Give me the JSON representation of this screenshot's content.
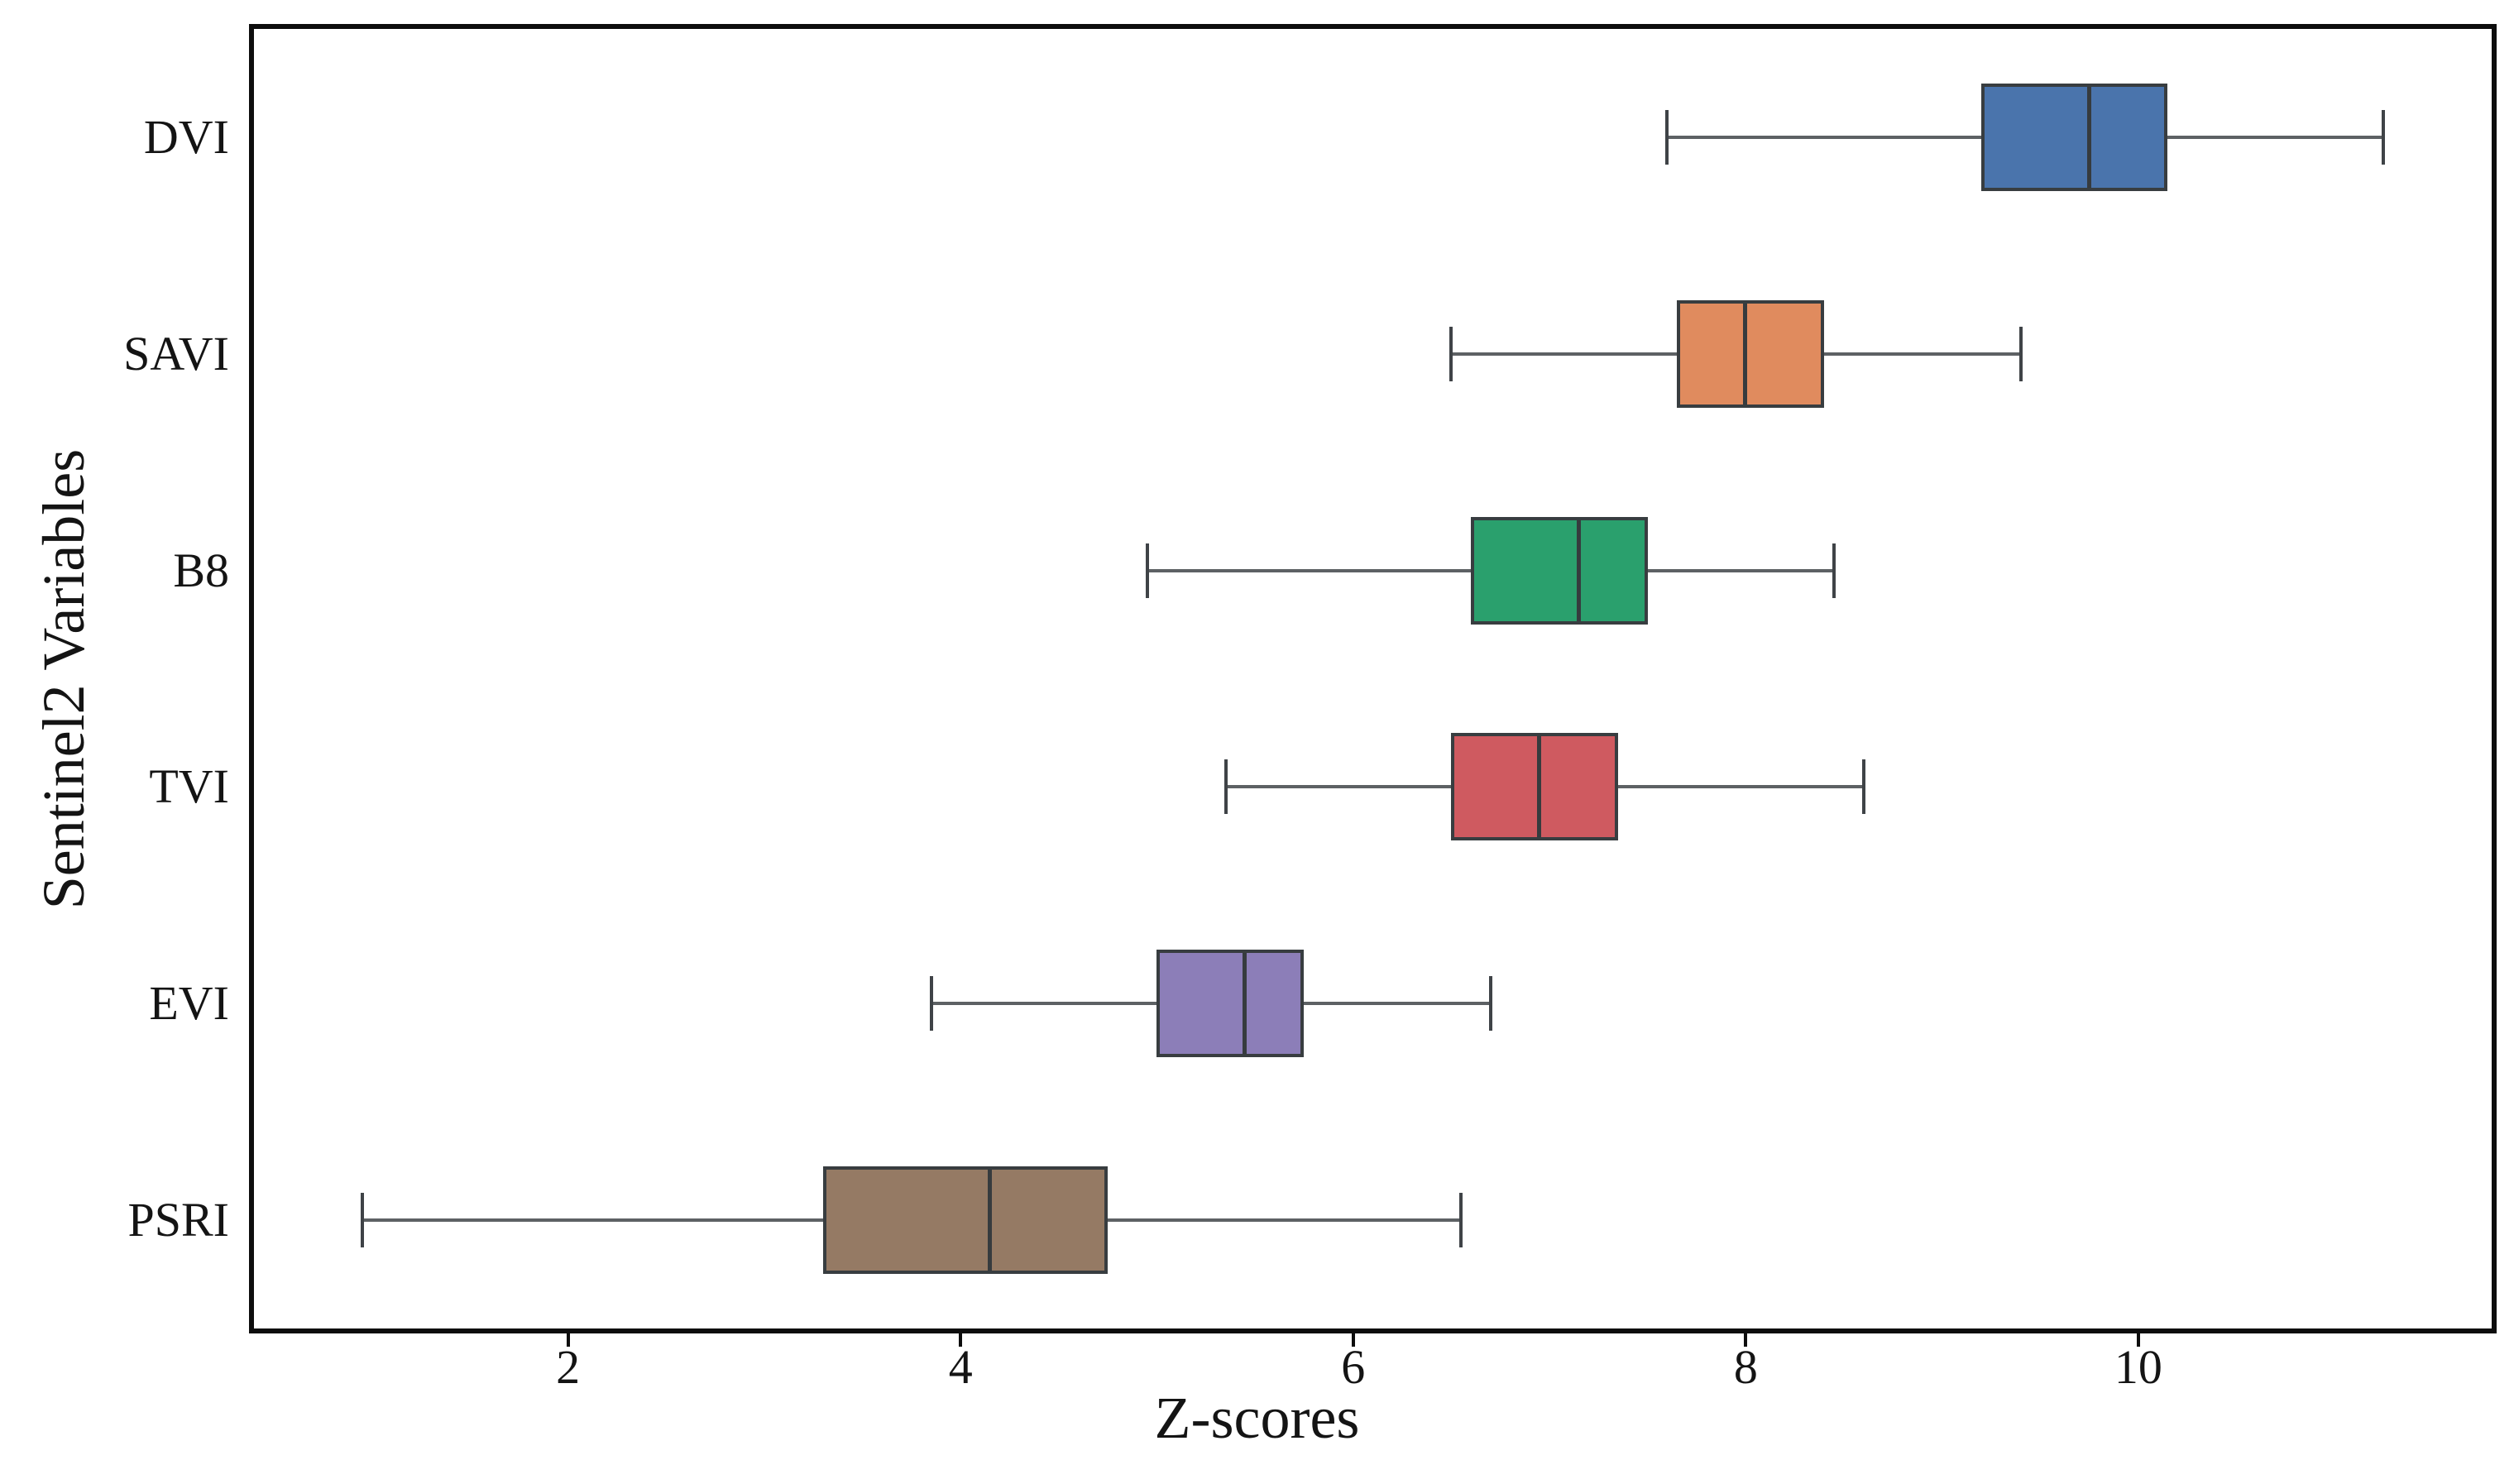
{
  "figure": {
    "background": "#ffffff",
    "axis_color": "#0d0d0d",
    "text_color": "#141414",
    "box_edge_color": "#383d40",
    "median_color": "#363b3e",
    "whisker_color": "#5d6164",
    "cap_color": "#3f4347"
  },
  "chart_data": {
    "type": "boxplot",
    "orientation": "horizontal",
    "title": "",
    "xlabel": "Z-scores",
    "ylabel": "Sentinel2 Variables",
    "xlim": [
      0.4,
      11.8
    ],
    "xticks": [
      2,
      4,
      6,
      8,
      10
    ],
    "grid": false,
    "legend": null,
    "categories": [
      "DVI",
      "SAVI",
      "B8",
      "TVI",
      "EVI",
      "PSRI"
    ],
    "series": [
      {
        "name": "DVI",
        "whisker_low": 7.6,
        "q1": 9.2,
        "median": 9.75,
        "q3": 10.15,
        "whisker_high": 11.25,
        "color": "#4a74ac"
      },
      {
        "name": "SAVI",
        "whisker_low": 6.5,
        "q1": 7.65,
        "median": 8.0,
        "q3": 8.4,
        "whisker_high": 9.4,
        "color": "#e08b5e"
      },
      {
        "name": "B8",
        "whisker_low": 4.95,
        "q1": 6.6,
        "median": 7.15,
        "q3": 7.5,
        "whisker_high": 8.45,
        "color": "#2aa06d"
      },
      {
        "name": "TVI",
        "whisker_low": 5.35,
        "q1": 6.5,
        "median": 6.95,
        "q3": 7.35,
        "whisker_high": 8.6,
        "color": "#cf5a60"
      },
      {
        "name": "EVI",
        "whisker_low": 3.85,
        "q1": 5.0,
        "median": 5.45,
        "q3": 5.75,
        "whisker_high": 6.7,
        "color": "#8c7eb8"
      },
      {
        "name": "PSRI",
        "whisker_low": 0.95,
        "q1": 3.3,
        "median": 4.15,
        "q3": 4.75,
        "whisker_high": 6.55,
        "color": "#957a64"
      }
    ]
  }
}
